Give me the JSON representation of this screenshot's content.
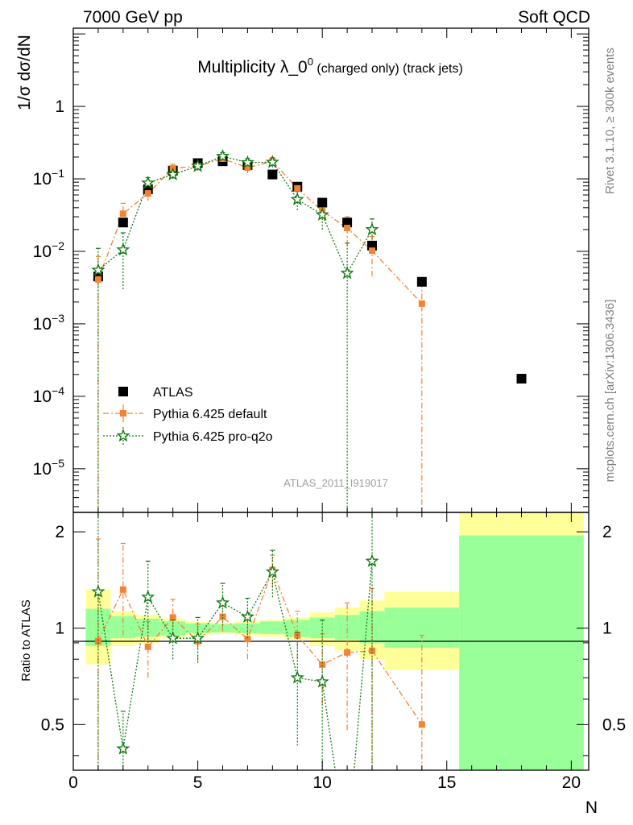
{
  "header": {
    "left": "7000 GeV pp",
    "right": "Soft QCD"
  },
  "side": {
    "rivet": "Rivet 3.1.10, ≥ 300k events",
    "mcplots": "mcplots.cern.ch [arXiv:1306.3436]"
  },
  "analysis_id": "ATLAS_2011_I919017",
  "chart_data": {
    "type": "scatter",
    "title_main": "Multiplicity λ_0",
    "title_sup": "0",
    "title_small": " (charged only) (track jets)",
    "ylabel": "1/σ dσ/dN",
    "xlabel": "N",
    "ratio_ylabel": "Ratio to ATLAS",
    "xlim": [
      0,
      20.7
    ],
    "ylim": [
      2.5e-06,
      12
    ],
    "ylog": true,
    "ratio_ylim": [
      0.36,
      2.3
    ],
    "ratio_log": true,
    "x_ticks": [
      0,
      5,
      10,
      15,
      20
    ],
    "x_tick_labels": [
      "0",
      "5",
      "10",
      "15",
      "20"
    ],
    "y_ticks": [
      1e-05,
      0.0001,
      0.001,
      0.01,
      0.1,
      1
    ],
    "ratio_ticks": [
      0.5,
      1,
      2
    ],
    "ratio_tick_labels": [
      "0.5",
      "1",
      "2"
    ],
    "legend": {
      "placement": "lower-left",
      "entries": [
        "ATLAS",
        "Pythia 6.425 default",
        "Pythia 6.425 pro-q2o"
      ]
    },
    "series": [
      {
        "name": "ATLAS",
        "color": "#000000",
        "marker": "square",
        "x": [
          1,
          2,
          3,
          4,
          5,
          6,
          7,
          8,
          9,
          10,
          11,
          12,
          14,
          18
        ],
        "y": [
          0.0045,
          0.025,
          0.072,
          0.13,
          0.165,
          0.175,
          0.155,
          0.115,
          0.078,
          0.047,
          0.025,
          0.012,
          0.0038,
          0.000175
        ]
      },
      {
        "name": "Pythia 6.425 default",
        "color": "#f58231",
        "marker": "square",
        "linestyle": "dashdot",
        "x": [
          1,
          2,
          3,
          4,
          5,
          6,
          7,
          8,
          9,
          10,
          11,
          12,
          14
        ],
        "y": [
          0.0041,
          0.033,
          0.063,
          0.14,
          0.15,
          0.19,
          0.143,
          0.175,
          0.074,
          0.036,
          0.021,
          0.0102,
          0.0019
        ],
        "y_lo": [
          0.0,
          0.024,
          0.05,
          0.12,
          0.13,
          0.17,
          0.12,
          0.155,
          0.06,
          0.027,
          0.012,
          0.0045,
          0.0
        ],
        "y_hi": [
          0.0085,
          0.046,
          0.078,
          0.16,
          0.17,
          0.21,
          0.165,
          0.195,
          0.088,
          0.045,
          0.03,
          0.016,
          0.0037
        ],
        "ratio": [
          0.91,
          1.32,
          0.875,
          1.08,
          0.91,
          1.085,
          0.925,
          1.52,
          0.95,
          0.77,
          0.84,
          0.85,
          0.5
        ],
        "ratio_lo": [
          0.3,
          0.95,
          0.7,
          0.93,
          0.79,
          0.98,
          0.8,
          1.35,
          0.8,
          0.58,
          0.48,
          0.38,
          0.3
        ],
        "ratio_hi": [
          1.9,
          1.84,
          1.05,
          1.23,
          1.03,
          1.2,
          1.07,
          1.69,
          1.13,
          0.96,
          1.2,
          1.33,
          0.95
        ]
      },
      {
        "name": "Pythia 6.425 pro-q2o",
        "color": "#117a11",
        "marker": "star",
        "linestyle": "dotted",
        "x": [
          1,
          2,
          3,
          4,
          5,
          6,
          7,
          8,
          9,
          10,
          11,
          12
        ],
        "y": [
          0.0055,
          0.0105,
          0.088,
          0.115,
          0.15,
          0.205,
          0.168,
          0.17,
          0.052,
          0.032,
          0.005,
          0.02
        ],
        "y_lo": [
          0.0,
          0.003,
          0.072,
          0.1,
          0.13,
          0.18,
          0.145,
          0.145,
          0.037,
          0.02,
          0.0,
          0.012
        ],
        "y_hi": [
          0.011,
          0.018,
          0.104,
          0.13,
          0.17,
          0.23,
          0.19,
          0.195,
          0.067,
          0.044,
          0.013,
          0.028
        ],
        "ratio": [
          1.3,
          0.42,
          1.25,
          0.93,
          0.93,
          1.2,
          1.085,
          1.5,
          0.7,
          0.68,
          0.2,
          1.62
        ],
        "ratio_lo": [
          0.3,
          0.3,
          0.9,
          0.8,
          0.78,
          1.02,
          0.93,
          1.25,
          0.43,
          0.3,
          0.2,
          0.3
        ],
        "ratio_hi": [
          2.6,
          0.55,
          1.62,
          1.06,
          1.08,
          1.38,
          1.24,
          1.75,
          0.97,
          1.06,
          0.2,
          2.5
        ]
      }
    ],
    "uncertainty_bands": {
      "edges": [
        0.5,
        1.5,
        2.5,
        3.5,
        4.5,
        5.5,
        6.5,
        7.5,
        8.5,
        9.5,
        10.5,
        11.5,
        12.5,
        15.5,
        20.5
      ],
      "yellow_lo": [
        0.77,
        0.88,
        0.9,
        0.93,
        0.95,
        0.96,
        0.95,
        0.94,
        0.92,
        0.88,
        0.85,
        0.8,
        0.74,
        0.3
      ],
      "yellow_hi": [
        1.32,
        1.13,
        1.1,
        1.07,
        1.05,
        1.04,
        1.05,
        1.06,
        1.08,
        1.12,
        1.16,
        1.22,
        1.3,
        3.0
      ],
      "green_lo": [
        0.88,
        0.93,
        0.94,
        0.95,
        0.965,
        0.97,
        0.965,
        0.96,
        0.94,
        0.93,
        0.92,
        0.9,
        0.87,
        0.3
      ],
      "green_hi": [
        1.15,
        1.09,
        1.07,
        1.05,
        1.035,
        1.03,
        1.035,
        1.05,
        1.06,
        1.08,
        1.1,
        1.13,
        1.16,
        1.95
      ],
      "yellow_color": "#ffff99",
      "green_color": "#99ff99"
    }
  }
}
